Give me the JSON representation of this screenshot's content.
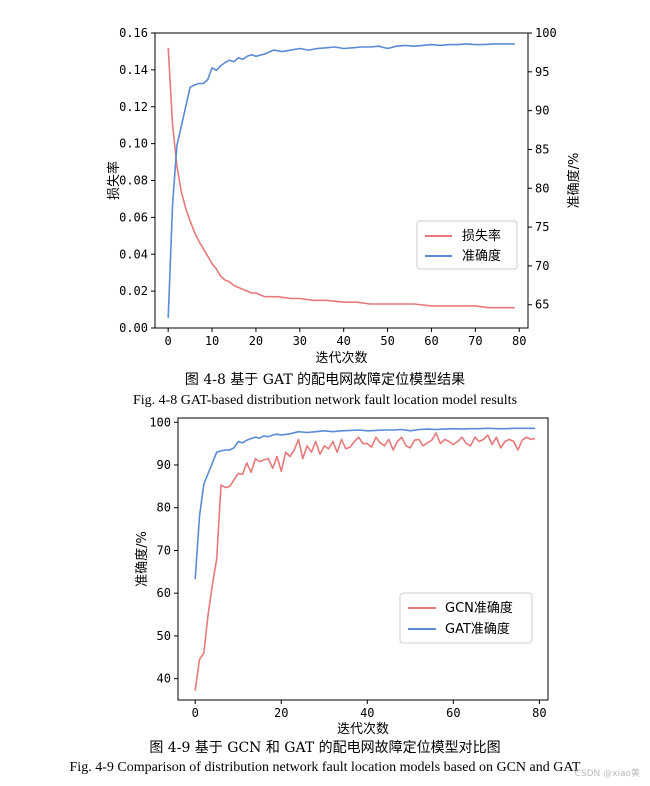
{
  "chart_data": [
    {
      "type": "line",
      "xlabel": "迭代次数",
      "ylabel_left": "损失率",
      "ylabel_right": "准确度/%",
      "xlim": [
        -3,
        82
      ],
      "ylim_left": [
        0,
        0.16
      ],
      "ylim_right": [
        62,
        100
      ],
      "xticks": [
        0,
        10,
        20,
        30,
        40,
        50,
        60,
        70,
        80
      ],
      "yticks_left": [
        "0.00",
        "0.02",
        "0.04",
        "0.06",
        "0.08",
        "0.10",
        "0.12",
        "0.14",
        "0.16"
      ],
      "yticks_right": [
        65,
        70,
        75,
        80,
        85,
        90,
        95,
        100
      ],
      "legend_position": "lower-right",
      "series": [
        {
          "name": "损失率",
          "axis": "left",
          "color": "#e8797a",
          "x": [
            0,
            1,
            2,
            3,
            4,
            5,
            6,
            7,
            8,
            9,
            10,
            11,
            12,
            13,
            14,
            15,
            16,
            17,
            18,
            19,
            20,
            22,
            25,
            28,
            30,
            33,
            36,
            40,
            43,
            46,
            50,
            53,
            56,
            60,
            63,
            66,
            70,
            73,
            76,
            79
          ],
          "y": [
            0.152,
            0.11,
            0.088,
            0.074,
            0.065,
            0.058,
            0.052,
            0.047,
            0.043,
            0.039,
            0.035,
            0.032,
            0.028,
            0.026,
            0.025,
            0.023,
            0.022,
            0.021,
            0.02,
            0.019,
            0.019,
            0.017,
            0.017,
            0.016,
            0.016,
            0.015,
            0.015,
            0.014,
            0.014,
            0.013,
            0.013,
            0.013,
            0.013,
            0.012,
            0.012,
            0.012,
            0.012,
            0.011,
            0.011,
            0.011
          ]
        },
        {
          "name": "准确度",
          "axis": "right",
          "color": "#5b8bd6",
          "x": [
            0,
            1,
            2,
            3,
            4,
            5,
            6,
            7,
            8,
            9,
            10,
            11,
            12,
            13,
            14,
            15,
            16,
            17,
            18,
            19,
            20,
            22,
            24,
            26,
            28,
            30,
            32,
            34,
            36,
            38,
            40,
            42,
            44,
            46,
            48,
            50,
            52,
            54,
            56,
            58,
            60,
            62,
            64,
            66,
            68,
            70,
            72,
            74,
            76,
            78,
            79
          ],
          "y": [
            63.3,
            78,
            85.5,
            88,
            90.5,
            93,
            93.3,
            93.5,
            93.5,
            94,
            95.5,
            95.2,
            95.8,
            96.2,
            96.5,
            96.3,
            96.8,
            96.6,
            97.0,
            97.2,
            97.0,
            97.3,
            97.8,
            97.6,
            97.8,
            98.0,
            97.8,
            98.0,
            98.1,
            98.2,
            98.0,
            98.1,
            98.2,
            98.2,
            98.3,
            98.0,
            98.3,
            98.4,
            98.3,
            98.4,
            98.5,
            98.4,
            98.5,
            98.5,
            98.6,
            98.5,
            98.5,
            98.6,
            98.6,
            98.6,
            98.6
          ]
        }
      ]
    },
    {
      "type": "line",
      "xlabel": "迭代次数",
      "ylabel": "准确度/%",
      "xlim": [
        -4,
        82
      ],
      "ylim": [
        35,
        101
      ],
      "xticks": [
        0,
        20,
        40,
        60,
        80
      ],
      "yticks": [
        40,
        50,
        60,
        70,
        80,
        90,
        100
      ],
      "legend_position": "lower-right",
      "series": [
        {
          "name": "GCN准确度",
          "color": "#e8797a",
          "x": [
            0,
            1,
            2,
            3,
            4,
            5,
            6,
            7,
            8,
            9,
            10,
            11,
            12,
            13,
            14,
            15,
            16,
            17,
            18,
            19,
            20,
            21,
            22,
            23,
            24,
            25,
            26,
            27,
            28,
            29,
            30,
            31,
            32,
            33,
            34,
            35,
            36,
            37,
            38,
            39,
            40,
            41,
            42,
            43,
            44,
            45,
            46,
            47,
            48,
            49,
            50,
            51,
            52,
            53,
            54,
            55,
            56,
            57,
            58,
            59,
            60,
            61,
            62,
            63,
            64,
            65,
            66,
            67,
            68,
            69,
            70,
            71,
            72,
            73,
            74,
            75,
            76,
            77,
            78,
            79
          ],
          "y": [
            37.2,
            44.5,
            46,
            55,
            62,
            68,
            85.3,
            84.7,
            85,
            86.5,
            88,
            87.8,
            90.5,
            88.3,
            91.5,
            90.8,
            91.2,
            91.5,
            89.2,
            92,
            88.5,
            93,
            92,
            93.5,
            96,
            91.5,
            94.5,
            93,
            95.5,
            92.5,
            94.5,
            93.8,
            95.5,
            93,
            96,
            93.8,
            94.2,
            95.5,
            96.5,
            95,
            95,
            94.2,
            96.5,
            95.2,
            94.5,
            96,
            93.5,
            95.5,
            96.5,
            94.5,
            94,
            95.8,
            96,
            94.5,
            95.2,
            95.8,
            97.5,
            95,
            96,
            95.5,
            94.8,
            95.5,
            96.5,
            95,
            94.5,
            96.5,
            95.5,
            96,
            97,
            94.8,
            96.5,
            94,
            95.5,
            96,
            95.5,
            93.5,
            95.8,
            96.5,
            96,
            96.2
          ]
        },
        {
          "name": "GAT准确度",
          "color": "#5b8bd6",
          "x": [
            0,
            1,
            2,
            3,
            4,
            5,
            6,
            7,
            8,
            9,
            10,
            11,
            12,
            13,
            14,
            15,
            16,
            17,
            18,
            19,
            20,
            22,
            24,
            26,
            28,
            30,
            32,
            34,
            36,
            38,
            40,
            42,
            44,
            46,
            48,
            50,
            52,
            54,
            56,
            58,
            60,
            62,
            64,
            66,
            68,
            70,
            72,
            74,
            76,
            78,
            79
          ],
          "y": [
            63.3,
            78,
            85.5,
            88,
            90.5,
            93,
            93.3,
            93.5,
            93.5,
            94,
            95.5,
            95.2,
            95.8,
            96.2,
            96.5,
            96.3,
            96.8,
            96.6,
            97.0,
            97.2,
            97.0,
            97.3,
            97.8,
            97.6,
            97.8,
            98.0,
            97.8,
            98.0,
            98.1,
            98.2,
            98.0,
            98.1,
            98.2,
            98.2,
            98.3,
            98.0,
            98.3,
            98.4,
            98.3,
            98.4,
            98.5,
            98.4,
            98.5,
            98.5,
            98.6,
            98.5,
            98.5,
            98.6,
            98.6,
            98.6,
            98.6
          ]
        }
      ]
    }
  ],
  "captions": {
    "fig1_cn": "图 4-8  基于 GAT 的配电网故障定位模型结果",
    "fig1_en": "Fig. 4-8 GAT-based distribution network fault location model results",
    "fig2_cn": "图 4-9  基于 GCN 和 GAT 的配电网故障定位模型对比图",
    "fig2_en": "Fig. 4-9 Comparison of distribution network fault location models based on GCN and GAT"
  },
  "watermark": "CSDN @xiao黄"
}
